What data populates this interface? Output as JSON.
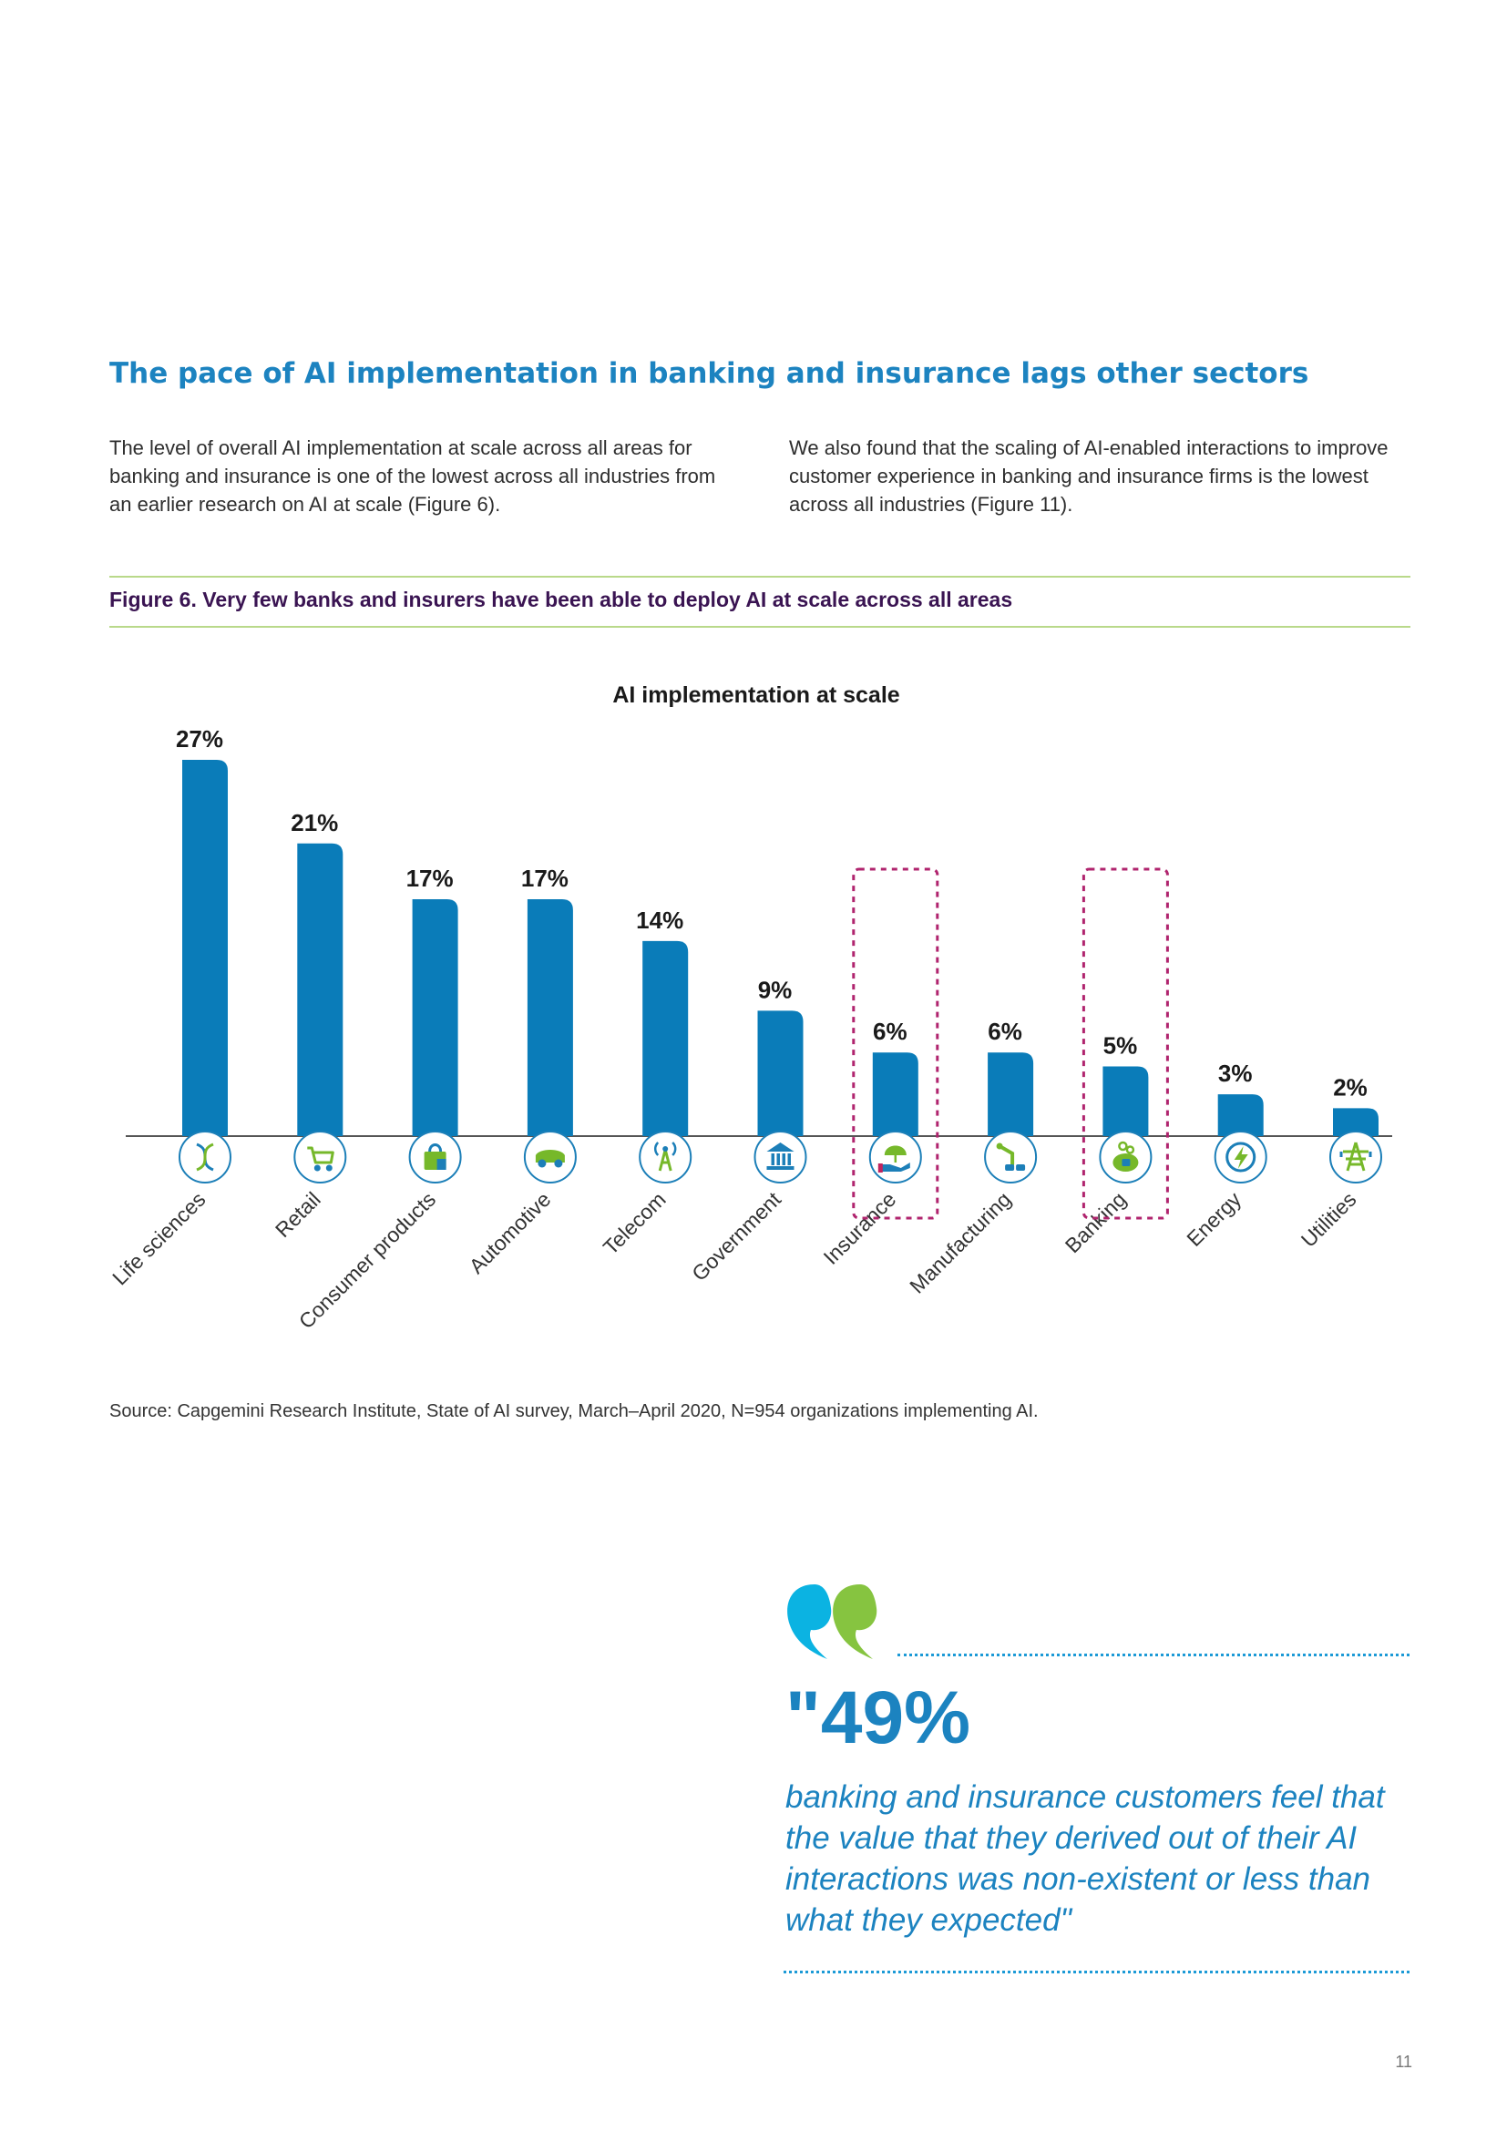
{
  "header": {
    "heading": "The pace of AI implementation in banking and insurance lags other sectors",
    "para_left": "The level of overall AI implementation at scale across all areas for banking and insurance is one of the lowest across all industries from an earlier research on AI at scale (Figure 6).",
    "para_right": "We also found that the scaling of AI-enabled interactions to improve customer experience in banking and insurance firms is the lowest across all industries (Figure 11)."
  },
  "figure": {
    "caption": "Figure 6. Very few banks and insurers have been able to deploy AI at scale across all areas",
    "source": "Source: Capgemini Research Institute, State of AI survey, March–April 2020, N=954 organizations implementing AI."
  },
  "chart_data": {
    "type": "bar",
    "title": "AI implementation at scale",
    "xlabel": "",
    "ylabel": "",
    "ylim": [
      0,
      27
    ],
    "categories": [
      "Life sciences",
      "Retail",
      "Consumer products",
      "Automotive",
      "Telecom",
      "Government",
      "Insurance",
      "Manufacturing",
      "Banking",
      "Energy",
      "Utilities"
    ],
    "values": [
      27,
      21,
      17,
      17,
      14,
      9,
      6,
      6,
      5,
      3,
      2
    ],
    "data_labels": [
      "27%",
      "21%",
      "17%",
      "17%",
      "14%",
      "9%",
      "6%",
      "6%",
      "5%",
      "3%",
      "2%"
    ],
    "icons": [
      "dna-icon",
      "shopping-cart-icon",
      "shopping-bag-icon",
      "car-icon",
      "antenna-icon",
      "government-building-icon",
      "umbrella-hand-icon",
      "robotic-arm-icon",
      "piggy-bank-icon",
      "lightning-icon",
      "power-pylon-icon"
    ],
    "highlighted": [
      "Insurance",
      "Banking"
    ],
    "grid": false,
    "colors": {
      "bar": "#0a7cb9",
      "icon_circle_border": "#1c7fb8",
      "icon_green": "#76b82a",
      "icon_blue": "#1c7fb8",
      "highlight_border": "#b0246e",
      "axis": "#555555"
    }
  },
  "callout": {
    "stat": "\"49%",
    "text": "banking and insurance customers feel that the value that they derived out of their AI interactions was non-existent or less than what they expected\"",
    "quote_icon": "quote-marks-icon",
    "colors": {
      "stat": "#1c83c0",
      "quote_blue": "#0bb3e2",
      "quote_green": "#86c440",
      "dots": "#1c9ad6"
    }
  },
  "page": {
    "number": "11"
  },
  "colors": {
    "heading": "#1c83c0",
    "caption": "#3a1452",
    "rule": "#b9d98a"
  }
}
